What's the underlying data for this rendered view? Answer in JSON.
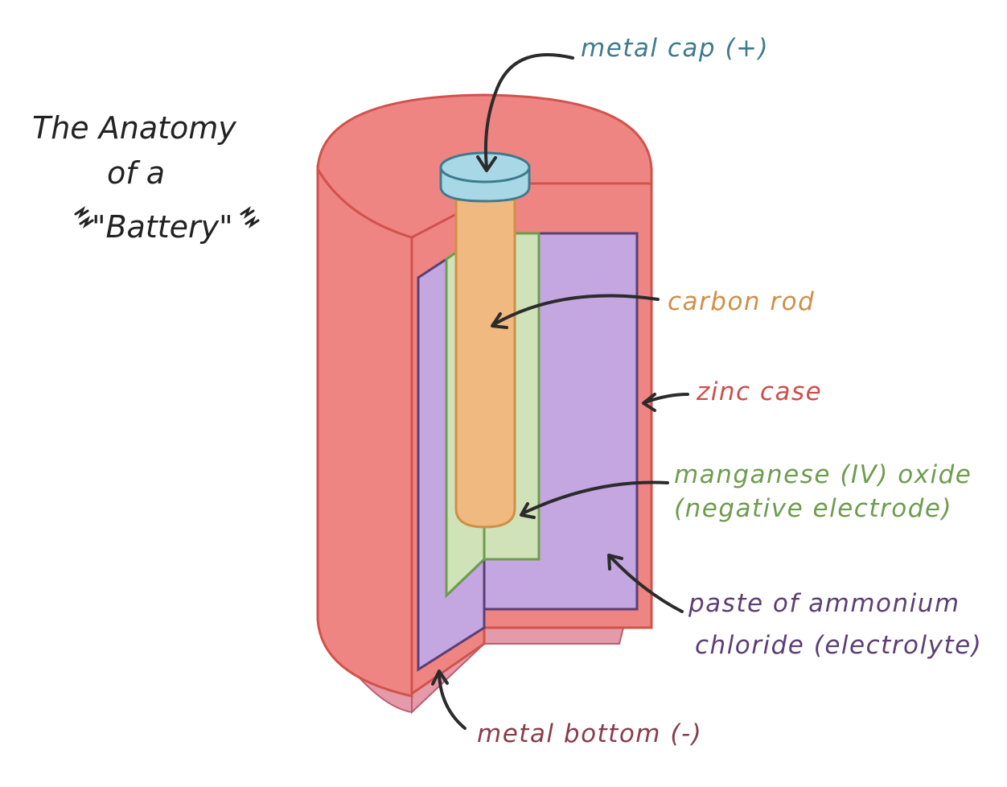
{
  "title": {
    "line1": "The Anatomy",
    "line2": "of a",
    "line3": "\"Battery\""
  },
  "labels": {
    "metal_cap": "metal cap (+)",
    "carbon_rod": "carbon rod",
    "zinc_case": "zinc case",
    "manganese_line1": "manganese (IV) oxide",
    "manganese_line2": "(negative electrode)",
    "paste_line1": "paste of ammonium",
    "paste_line2": "chloride (electrolyte)",
    "metal_bottom": "metal bottom (-)"
  },
  "colors": {
    "zinc_case": "#ef8582",
    "zinc_outline": "#d0534c",
    "metal_cap": "#a8d8e6",
    "carbon_rod": "#f0b980",
    "manganese_oxide": "#cfe2b8",
    "paste": "#c4a6e0",
    "metal_bottom": "#e49aa8",
    "label_metal_cap": "#3e7a8e",
    "label_carbon_rod": "#d08f48",
    "label_zinc_case": "#cf4d49",
    "label_manganese": "#6e9c4f",
    "label_paste": "#5c3e74",
    "label_metal_bottom": "#8a3b4a"
  }
}
